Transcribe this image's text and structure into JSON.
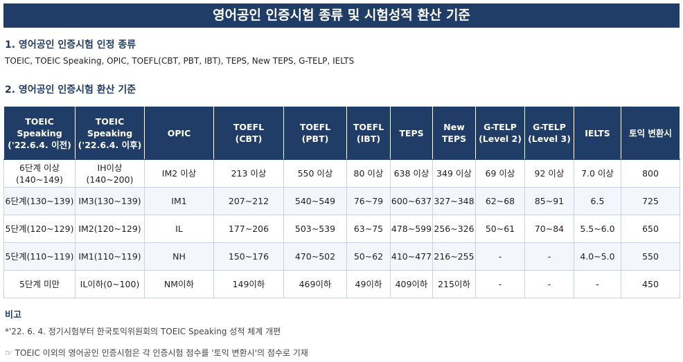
{
  "header": {
    "title": "영어공인 인증시험 종류 및 시험성적 환산 기준"
  },
  "section1": {
    "heading": "1. 영어공인 인증시험 인정 종류",
    "text": "TOEIC, TOEIC Speaking, OPIC, TOEFL(CBT, PBT, IBT), TEPS, New TEPS, G-TELP, IELTS"
  },
  "section2": {
    "heading": "2. 영어공인 인증시험 환산 기준"
  },
  "table": {
    "columns": [
      "TOEIC\nSpeaking\n('22.6.4. 이전)",
      "TOEIC\nSpeaking\n('22.6.4. 이후)",
      "OPIC",
      "TOEFL\n(CBT)",
      "TOEFL\n(PBT)",
      "TOEFL\n(IBT)",
      "TEPS",
      "New\nTEPS",
      "G-TELP\n(Level 2)",
      "G-TELP\n(Level 3)",
      "IELTS",
      "토익 변환시"
    ],
    "rows": [
      [
        "6단계 이상\n(140~149)",
        "IH이상\n(140~200)",
        "IM2 이상",
        "213 이상",
        "550 이상",
        "80 이상",
        "638 이상",
        "349 이상",
        "69 이상",
        "92 이상",
        "7.0 이상",
        "800"
      ],
      [
        "6단계(130~139)",
        "IM3(130~139)",
        "IM1",
        "207~212",
        "540~549",
        "76~79",
        "600~637",
        "327~348",
        "62~68",
        "85~91",
        "6.5",
        "725"
      ],
      [
        "5단계(120~129)",
        "IM2(120~129)",
        "IL",
        "177~206",
        "503~539",
        "63~75",
        "478~599",
        "256~326",
        "50~61",
        "70~84",
        "5.5~6.0",
        "650"
      ],
      [
        "5단계(110~119)",
        "IM1(110~119)",
        "NH",
        "150~176",
        "470~502",
        "50~62",
        "410~477",
        "216~255",
        "-",
        "-",
        "4.0~5.0",
        "550"
      ],
      [
        "5단계 미만",
        "IL이하(0~100)",
        "NM이하",
        "149이하",
        "469이하",
        "49이하",
        "409이하",
        "215이하",
        "-",
        "-",
        "-",
        "450"
      ]
    ]
  },
  "notes": {
    "heading": "비고",
    "items": [
      "*'22. 6. 4. 정기시험부터 한국토익위원회의 TOEIC Speaking 성적 체계 개편",
      "☞ TOEIC 이외의 영어공인 인증시험은 각 인증시험 점수를 '토익 변환시'의 점수로 기재"
    ]
  }
}
